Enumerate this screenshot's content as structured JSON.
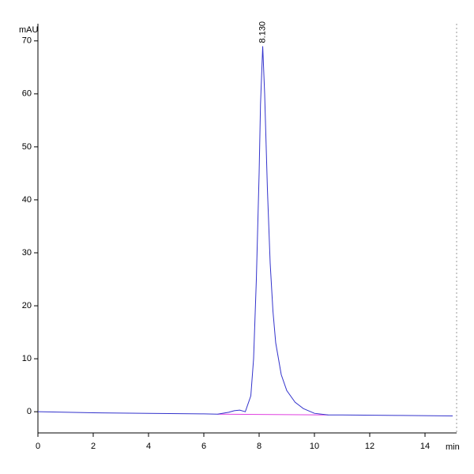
{
  "chart_data": {
    "type": "line",
    "y_label": "mAU",
    "x_label": "min",
    "annotation": {
      "text": "8.130",
      "x": 8.13,
      "y": 69
    },
    "xlim": [
      0,
      15
    ],
    "xticks": [
      0,
      2,
      4,
      6,
      8,
      10,
      12,
      14
    ],
    "ylim": [
      -4,
      72.5
    ],
    "yticks": [
      0,
      10,
      20,
      30,
      40,
      50,
      60,
      70
    ],
    "x": [
      0,
      2,
      4,
      6,
      6.5,
      6.9,
      7.1,
      7.3,
      7.5,
      7.7,
      7.8,
      7.9,
      8.0,
      8.05,
      8.13,
      8.2,
      8.3,
      8.4,
      8.5,
      8.6,
      8.8,
      9.0,
      9.3,
      9.6,
      10,
      10.5,
      11,
      13,
      15
    ],
    "series": [
      {
        "color": "#3333cc",
        "values": [
          0,
          -0.2,
          -0.3,
          -0.4,
          -0.45,
          -0.1,
          0.2,
          0.3,
          0,
          3,
          10,
          25,
          45,
          58,
          69,
          60,
          42,
          28,
          19,
          13,
          7,
          4,
          1.8,
          0.6,
          -0.3,
          -0.6,
          -0.6,
          -0.7,
          -0.8
        ]
      }
    ],
    "baseline": {
      "color": "#e040e0",
      "x": [
        6.5,
        10.5
      ],
      "values": [
        -0.45,
        -0.6
      ]
    }
  }
}
